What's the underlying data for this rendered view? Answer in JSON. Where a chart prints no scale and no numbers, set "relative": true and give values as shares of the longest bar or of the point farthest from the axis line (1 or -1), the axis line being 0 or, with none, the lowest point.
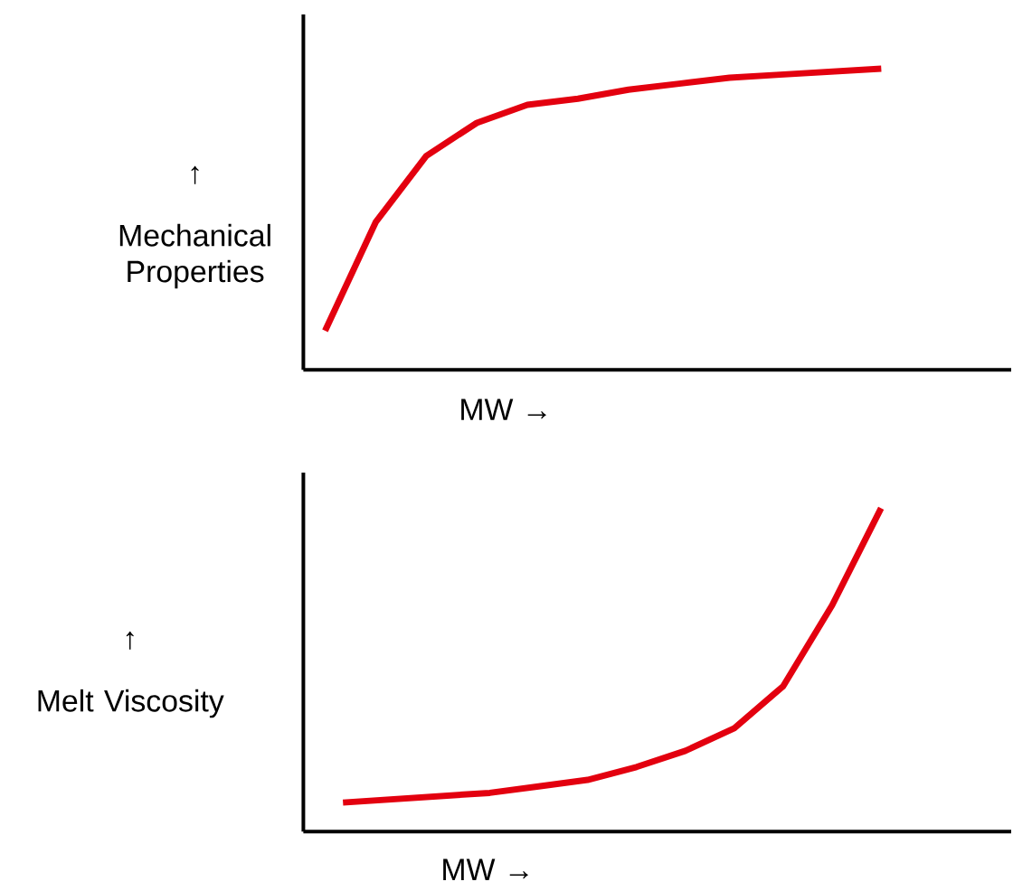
{
  "chart_data": [
    {
      "type": "line",
      "relative": true,
      "xlabel": "MW →",
      "ylabel": "Mechanical Properties",
      "annotations": [
        "↑"
      ],
      "color": "#e3000f",
      "categories": [
        null,
        null,
        null,
        null,
        null,
        null,
        null,
        null,
        null,
        null,
        null,
        null
      ],
      "values": [
        0.13,
        0.49,
        0.71,
        0.82,
        0.88,
        0.9,
        0.93,
        0.95,
        0.97,
        0.98,
        0.99,
        1.0
      ]
    },
    {
      "type": "line",
      "relative": true,
      "xlabel": "MW →",
      "ylabel": "Melt Viscosity",
      "annotations": [
        "↑"
      ],
      "color": "#e3000f",
      "categories": [
        null,
        null,
        null,
        null,
        null,
        null,
        null,
        null,
        null,
        null,
        null,
        null
      ],
      "values": [
        0.09,
        0.1,
        0.11,
        0.12,
        0.14,
        0.16,
        0.2,
        0.25,
        0.32,
        0.45,
        0.7,
        1.0
      ]
    }
  ]
}
